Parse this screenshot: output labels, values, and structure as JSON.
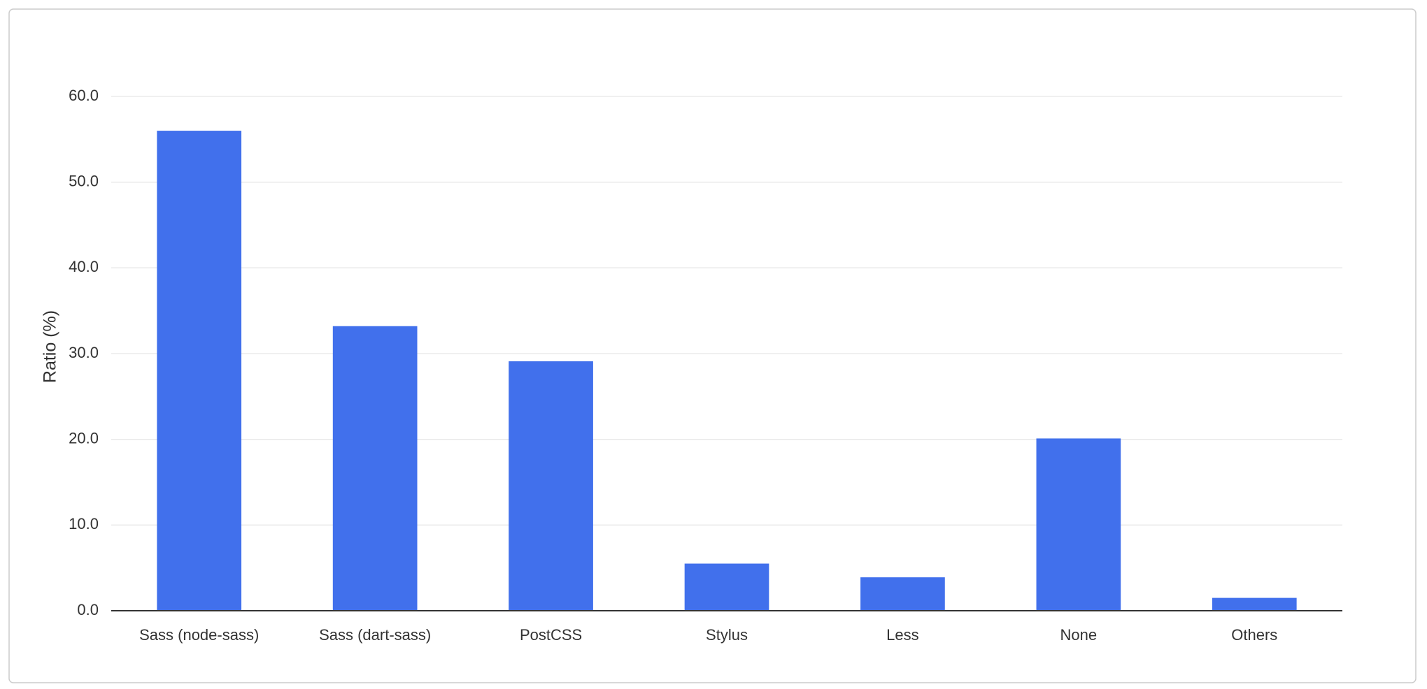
{
  "chart_data": {
    "type": "bar",
    "y_label": "Ratio (%)",
    "categories": [
      "Sass (node-sass)",
      "Sass (dart-sass)",
      "PostCSS",
      "Stylus",
      "Less",
      "None",
      "Others"
    ],
    "values": [
      56.0,
      33.2,
      29.1,
      5.5,
      3.9,
      20.1,
      1.5
    ],
    "color": "#4170ec",
    "ylim": [
      0,
      60
    ],
    "yticks": [
      {
        "value": 0,
        "label": "0.0"
      },
      {
        "value": 10,
        "label": "10.0"
      },
      {
        "value": 20,
        "label": "20.0"
      },
      {
        "value": 30,
        "label": "30.0"
      },
      {
        "value": 40,
        "label": "40.0"
      },
      {
        "value": 50,
        "label": "50.0"
      },
      {
        "value": 60,
        "label": "60.0"
      }
    ],
    "grid": true
  }
}
